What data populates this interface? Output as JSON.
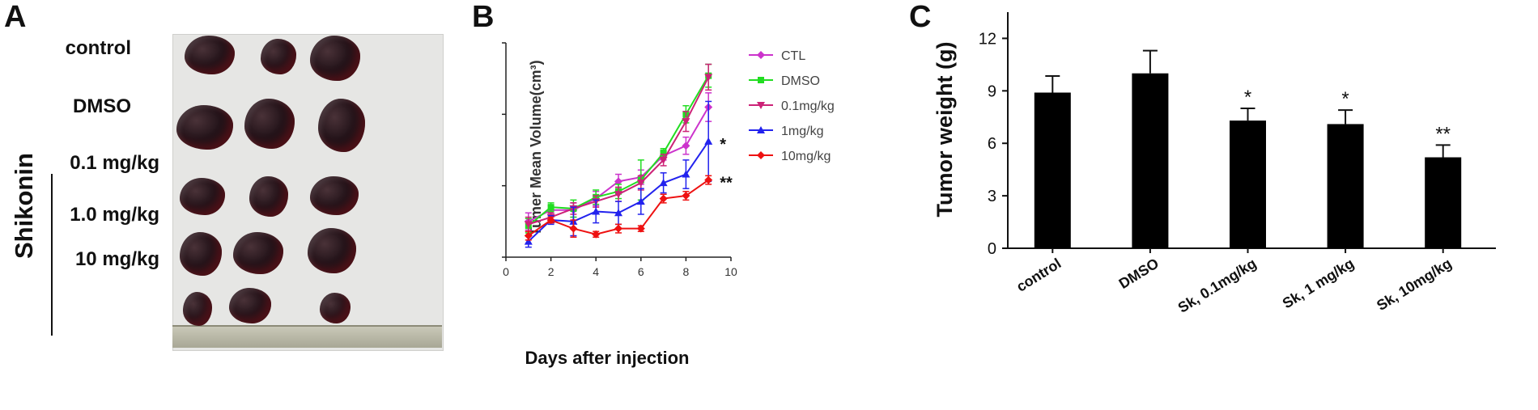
{
  "panel_a": {
    "letter": "A",
    "row_labels": [
      "control",
      "DMSO",
      "0.1 mg/kg",
      "1.0 mg/kg",
      "10 mg/kg"
    ],
    "group_label": "Shikonin"
  },
  "chart_data": [
    {
      "panel": "B",
      "type": "line",
      "xlabel": "Days after injection",
      "ylabel": "Tumer Mean Volume(cm³)",
      "xlim": [
        0,
        10
      ],
      "ylim": [
        0,
        15
      ],
      "xticks": [
        0,
        2,
        4,
        6,
        8,
        10
      ],
      "yticks": [
        0,
        5,
        10,
        15
      ],
      "x": [
        1,
        2,
        3,
        4,
        5,
        6,
        7,
        8,
        9
      ],
      "legend_position": "right",
      "series": [
        {
          "name": "CTL",
          "color": "#cc33cc",
          "marker": "diamond",
          "values": [
            2.5,
            3.3,
            3.3,
            4.1,
            5.3,
            5.6,
            7.1,
            7.8,
            10.5
          ],
          "errors": [
            0.6,
            0.3,
            0.5,
            0.5,
            0.5,
            0.5,
            0.3,
            0.6,
            1.0
          ]
        },
        {
          "name": "DMSO",
          "color": "#22dd22",
          "marker": "square",
          "values": [
            2.2,
            3.5,
            3.4,
            4.2,
            4.6,
            5.4,
            7.3,
            10.0,
            12.7
          ],
          "errors": [
            0.5,
            0.3,
            0.6,
            0.5,
            0.5,
            1.4,
            0.3,
            0.6,
            0.8
          ]
        },
        {
          "name": "0.1mg/kg",
          "color": "#cc2277",
          "marker": "triangle-down",
          "values": [
            2.3,
            2.8,
            3.4,
            3.9,
            4.4,
            5.2,
            6.8,
            9.5,
            12.6
          ],
          "errors": [
            0.5,
            0.3,
            0.4,
            0.4,
            0.5,
            0.5,
            0.4,
            0.7,
            0.9
          ]
        },
        {
          "name": "1mg/kg",
          "color": "#2222ee",
          "marker": "triangle-up",
          "values": [
            1.1,
            2.6,
            2.5,
            3.2,
            3.1,
            3.9,
            5.2,
            5.8,
            8.1
          ],
          "errors": [
            0.4,
            0.3,
            1.0,
            0.8,
            0.8,
            0.9,
            0.7,
            1.0,
            2.8
          ]
        },
        {
          "name": "10mg/kg",
          "color": "#ee1111",
          "marker": "diamond",
          "values": [
            1.5,
            2.6,
            2.0,
            1.6,
            2.0,
            2.0,
            4.1,
            4.3,
            5.4
          ],
          "errors": [
            0.3,
            0.2,
            0.6,
            0.2,
            0.3,
            0.2,
            0.3,
            0.3,
            0.3
          ]
        }
      ],
      "annotations": [
        {
          "text": "*",
          "series": "1mg/kg"
        },
        {
          "text": "**",
          "series": "10mg/kg"
        }
      ]
    },
    {
      "panel": "C",
      "type": "bar",
      "ylabel": "Tumor weight (g)",
      "ylim": [
        0,
        13.5
      ],
      "yticks": [
        0,
        3,
        6,
        9,
        12
      ],
      "categories": [
        "control",
        "DMSO",
        "Sk, 0.1mg/kg",
        "Sk, 1 mg/kg",
        "Sk, 10mg/kg"
      ],
      "values": [
        8.9,
        10.0,
        7.3,
        7.1,
        5.2
      ],
      "errors": [
        0.95,
        1.3,
        0.7,
        0.8,
        0.7
      ],
      "bar_color": "#000000",
      "significance": [
        "",
        "",
        "*",
        "*",
        "**"
      ]
    }
  ]
}
